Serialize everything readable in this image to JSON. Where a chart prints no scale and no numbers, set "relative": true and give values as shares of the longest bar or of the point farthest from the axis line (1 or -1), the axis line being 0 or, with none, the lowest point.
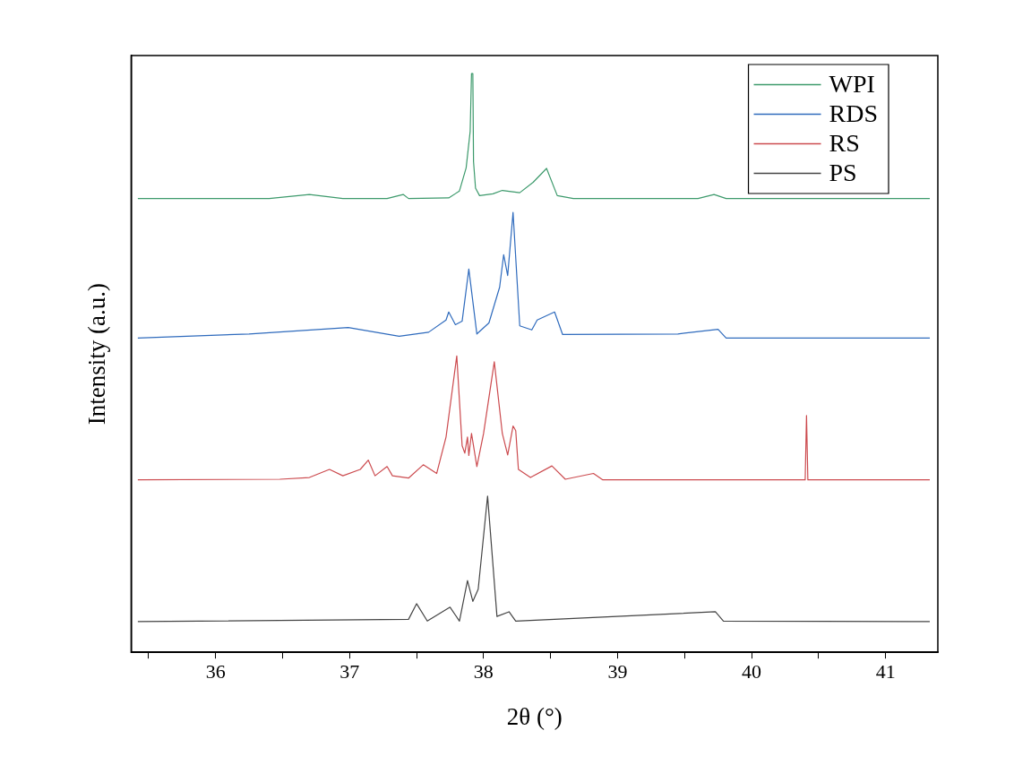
{
  "chart_data": {
    "type": "line",
    "relative": true,
    "xlabel": "2θ (°)",
    "ylabel": "Intensity (a.u.)",
    "xlim": [
      35.37,
      41.39
    ],
    "xticks": [
      {
        "value": 35.5,
        "label": null
      },
      36,
      {
        "value": 36.5,
        "label": null
      },
      37,
      {
        "value": 37.5,
        "label": null
      },
      38,
      {
        "value": 38.5,
        "label": null
      },
      39,
      {
        "value": 39.5,
        "label": null
      },
      40,
      {
        "value": 40.5,
        "label": null
      },
      41
    ],
    "grid": false,
    "legend": "top right",
    "marker": "none",
    "line_style": "solid",
    "series": [
      {
        "name": "WPI",
        "color": "#3d9a6c",
        "x": [
          35.42,
          36.4,
          36.7,
          36.95,
          37.28,
          37.4,
          37.44,
          37.74,
          37.82,
          37.87,
          37.9,
          37.91,
          37.92,
          37.925,
          37.94,
          37.97,
          38.07,
          38.14,
          38.27,
          38.37,
          38.47,
          38.55,
          38.67,
          39.6,
          39.72,
          39.81,
          41.33
        ],
        "values": [
          0.784,
          0.784,
          0.791,
          0.784,
          0.784,
          0.791,
          0.784,
          0.785,
          0.797,
          0.837,
          0.9,
          1.0,
          1.0,
          0.848,
          0.802,
          0.789,
          0.792,
          0.798,
          0.794,
          0.812,
          0.836,
          0.789,
          0.784,
          0.784,
          0.791,
          0.784,
          0.784
        ]
      },
      {
        "name": "RDS",
        "color": "#2f6bbd",
        "x": [
          35.42,
          36.25,
          36.99,
          37.37,
          37.59,
          37.72,
          37.74,
          37.79,
          37.84,
          37.89,
          37.95,
          38.04,
          38.12,
          38.15,
          38.18,
          38.22,
          38.27,
          38.36,
          38.4,
          38.53,
          38.59,
          39.45,
          39.75,
          39.81,
          41.33
        ],
        "values": [
          0.543,
          0.55,
          0.561,
          0.546,
          0.553,
          0.574,
          0.588,
          0.566,
          0.572,
          0.662,
          0.55,
          0.569,
          0.631,
          0.687,
          0.651,
          0.76,
          0.564,
          0.557,
          0.574,
          0.588,
          0.549,
          0.55,
          0.558,
          0.543,
          0.543
        ]
      },
      {
        "name": "RS",
        "color": "#cc4b4f",
        "x": [
          35.42,
          36.48,
          36.7,
          36.85,
          36.95,
          37.08,
          37.14,
          37.19,
          37.28,
          37.32,
          37.44,
          37.55,
          37.65,
          37.72,
          37.8,
          37.84,
          37.86,
          37.88,
          37.89,
          37.91,
          37.95,
          38.0,
          38.08,
          38.14,
          38.18,
          38.22,
          38.24,
          38.26,
          38.35,
          38.51,
          38.61,
          38.82,
          38.89,
          40.4,
          40.41,
          40.42,
          41.33
        ],
        "values": [
          0.298,
          0.299,
          0.302,
          0.316,
          0.305,
          0.316,
          0.332,
          0.305,
          0.321,
          0.305,
          0.301,
          0.324,
          0.309,
          0.372,
          0.512,
          0.357,
          0.344,
          0.372,
          0.34,
          0.378,
          0.321,
          0.378,
          0.502,
          0.378,
          0.341,
          0.391,
          0.383,
          0.316,
          0.302,
          0.322,
          0.299,
          0.309,
          0.298,
          0.298,
          0.409,
          0.298,
          0.298
        ]
      },
      {
        "name": "PS",
        "color": "#444444",
        "x": [
          35.42,
          37.44,
          37.5,
          37.58,
          37.75,
          37.82,
          37.88,
          37.92,
          37.96,
          38.03,
          38.1,
          38.19,
          38.24,
          39.73,
          39.79,
          41.33
        ],
        "values": [
          0.053,
          0.057,
          0.084,
          0.054,
          0.078,
          0.054,
          0.124,
          0.088,
          0.109,
          0.27,
          0.062,
          0.07,
          0.054,
          0.07,
          0.054,
          0.053
        ]
      }
    ]
  }
}
